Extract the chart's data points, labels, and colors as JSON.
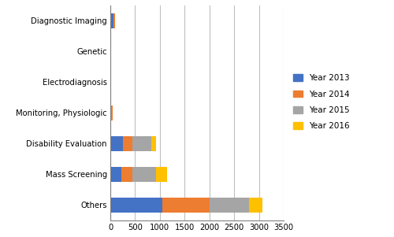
{
  "categories": [
    "Diagnostic Imaging",
    "Genetic",
    "Electrodiagnosis",
    "Monitoring, Physiologic",
    "Disability Evaluation",
    "Mass Screening",
    "Others"
  ],
  "year2013": [
    1050,
    220,
    260,
    0,
    0,
    0,
    60
  ],
  "year2014": [
    950,
    230,
    190,
    50,
    15,
    15,
    35
  ],
  "year2015": [
    800,
    480,
    380,
    0,
    0,
    0,
    0
  ],
  "year2016": [
    270,
    220,
    100,
    0,
    0,
    0,
    0
  ],
  "colors": {
    "2013": "#4472C4",
    "2014": "#ED7D31",
    "2015": "#A5A5A5",
    "2016": "#FFC000"
  },
  "legend_labels": [
    "Year 2013",
    "Year 2014",
    "Year 2015",
    "Year 2016"
  ],
  "xlim": [
    0,
    3500
  ],
  "xticks": [
    0,
    500,
    1000,
    1500,
    2000,
    2500,
    3000,
    3500
  ],
  "background_color": "#FFFFFF",
  "grid_color": "#C0C0C0",
  "figsize": [
    5.0,
    3.01
  ],
  "dpi": 100
}
